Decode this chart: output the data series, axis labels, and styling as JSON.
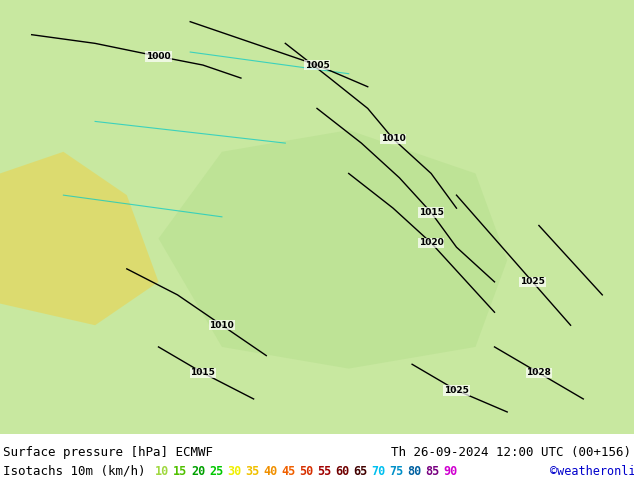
{
  "title_left": "Surface pressure [hPa] ECMWF",
  "title_right": "Th 26-09-2024 12:00 UTC (00+156)",
  "subtitle_label": "Isotachs 10m (km/h)",
  "copyright": "©weatheronline.co.uk",
  "isotach_values": [
    10,
    15,
    20,
    25,
    30,
    35,
    40,
    45,
    50,
    55,
    60,
    65,
    70,
    75,
    80,
    85,
    90
  ],
  "isotach_colors": [
    "#c8f0a0",
    "#a0e060",
    "#78d030",
    "#50c000",
    "#f0f000",
    "#f0c000",
    "#f09000",
    "#f06000",
    "#f03000",
    "#c00000",
    "#900000",
    "#600000",
    "#00c0f0",
    "#0090c0",
    "#0060a0",
    "#800080",
    "#ff00ff"
  ],
  "bg_color": "#e8f5e0",
  "map_bg": "#d4edc4",
  "bottom_bar_color": "#ffffff",
  "title_fontsize": 9,
  "subtitle_fontsize": 9,
  "legend_num_fontsize": 8.5,
  "fig_width": 6.34,
  "fig_height": 4.9
}
